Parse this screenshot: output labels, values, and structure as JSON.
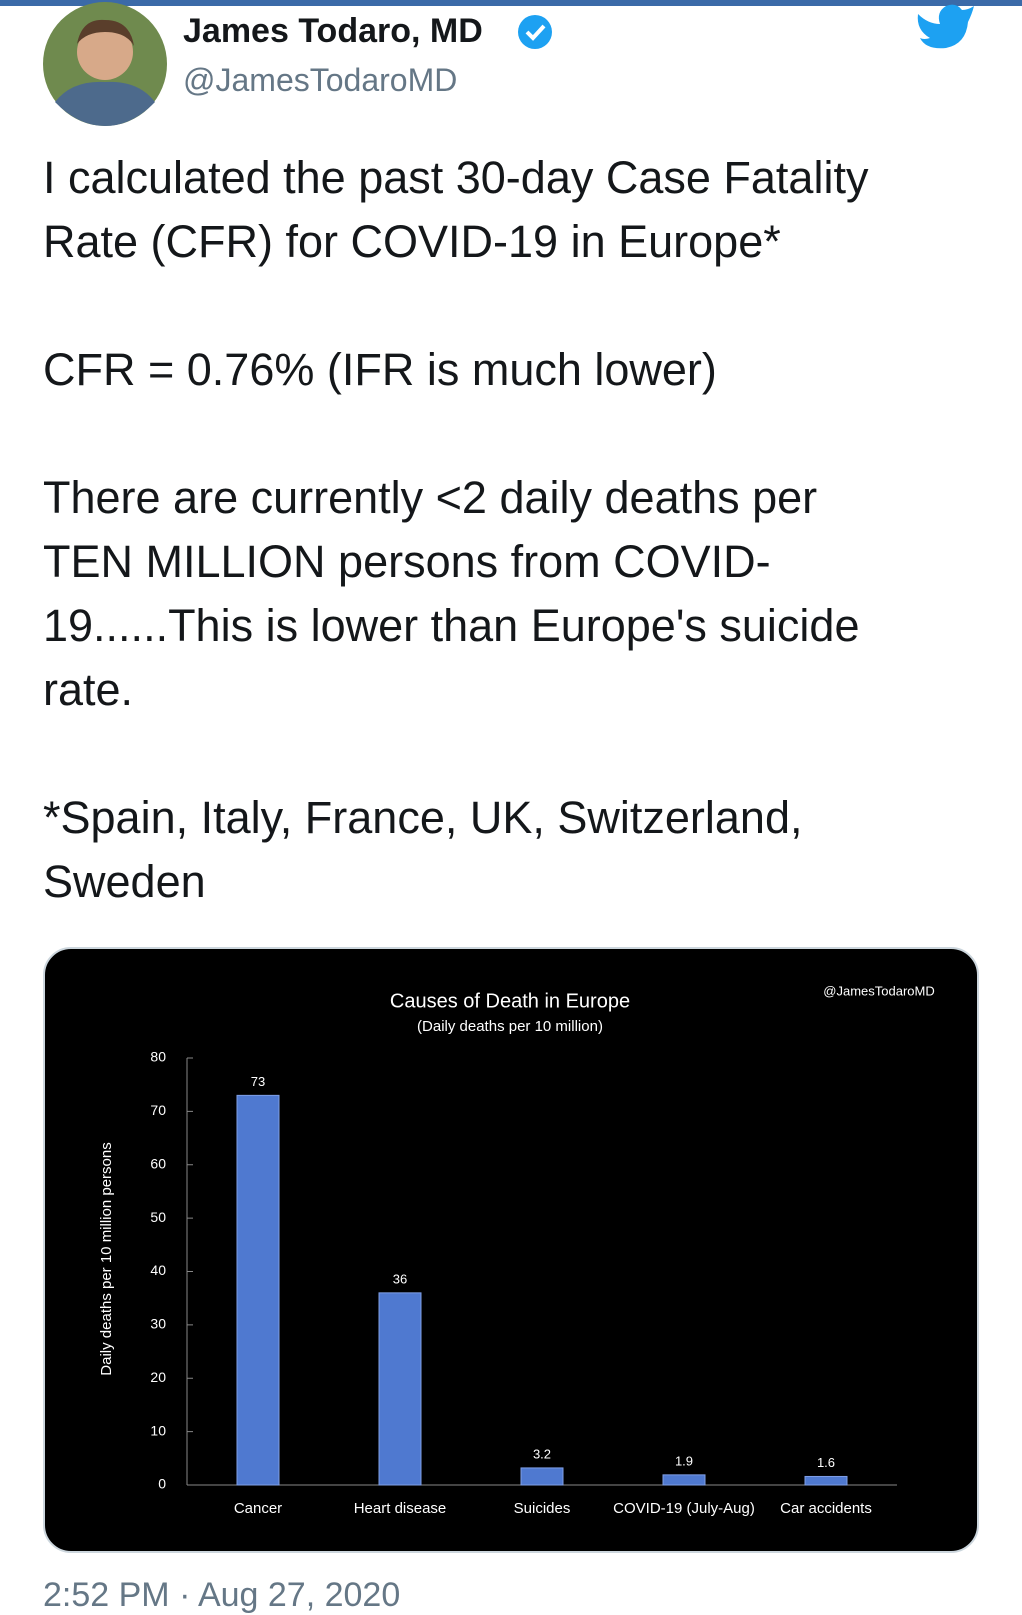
{
  "tweet": {
    "name": "James Todaro, MD",
    "handle": "@JamesTodaroMD",
    "paragraphs": [
      [
        "I calculated the past 30-day Case Fatality",
        "Rate (CFR) for COVID-19 in Europe*"
      ],
      [
        "CFR = 0.76% (IFR is much lower)"
      ],
      [
        "There are currently <2 daily deaths per",
        "TEN MILLION persons from COVID-",
        "19......This is lower than Europe's suicide",
        "rate."
      ],
      [
        "*Spain, Italy, France, UK, Switzerland,",
        "Sweden"
      ]
    ],
    "timestamp": "2:52 PM · Aug 27, 2020"
  },
  "chart_data": {
    "type": "bar",
    "title": "Causes of Death in Europe",
    "subtitle": "(Daily deaths per 10 million)",
    "watermark": "@JamesTodaroMD",
    "ylabel": "Daily deaths per 10 million persons",
    "categories": [
      "Cancer",
      "Heart disease",
      "Suicides",
      "COVID-19 (July-Aug)",
      "Car accidents"
    ],
    "values": [
      73,
      36,
      3.2,
      1.9,
      1.6
    ],
    "color": "#4f79d0",
    "ylim": [
      0,
      80
    ],
    "yticks": [
      0,
      10,
      20,
      30,
      40,
      50,
      60,
      70,
      80
    ]
  }
}
